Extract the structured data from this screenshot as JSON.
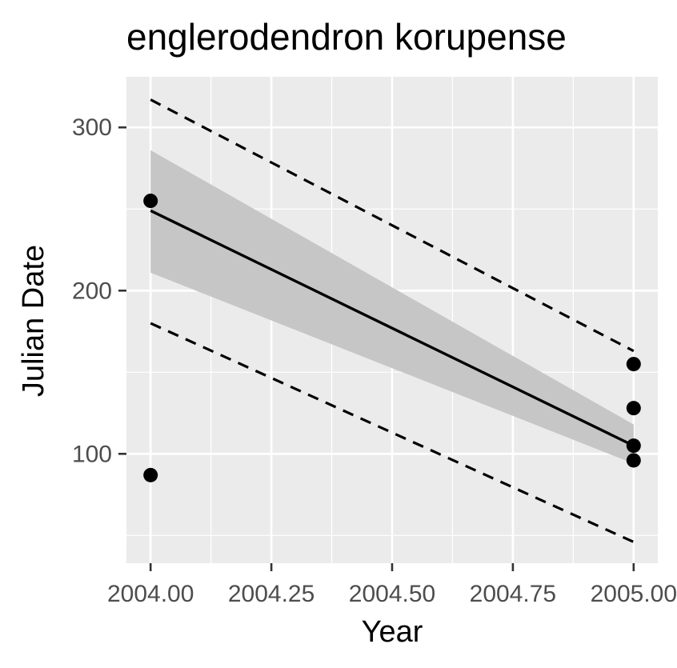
{
  "chart_data": {
    "type": "scatter",
    "title": "englerodendron korupense",
    "xlabel": "Year",
    "ylabel": "Julian Date",
    "xlim": [
      2003.95,
      2005.05
    ],
    "ylim": [
      33,
      331
    ],
    "x_ticks": [
      2004.0,
      2004.25,
      2004.5,
      2004.75,
      2005.0
    ],
    "x_tick_labels": [
      "2004.00",
      "2004.25",
      "2004.50",
      "2004.75",
      "2005.00"
    ],
    "y_ticks": [
      100,
      200,
      300
    ],
    "y_tick_labels": [
      "100",
      "200",
      "300"
    ],
    "grid": true,
    "points": [
      {
        "x": 2004.0,
        "y": 255
      },
      {
        "x": 2004.0,
        "y": 87
      },
      {
        "x": 2005.0,
        "y": 155
      },
      {
        "x": 2005.0,
        "y": 128
      },
      {
        "x": 2005.0,
        "y": 105
      },
      {
        "x": 2005.0,
        "y": 96
      }
    ],
    "fit_line": {
      "x": [
        2004.0,
        2005.0
      ],
      "y": [
        249,
        105
      ]
    },
    "confidence_band": {
      "x": [
        2004.0,
        2005.0
      ],
      "upper": [
        286,
        118
      ],
      "lower": [
        211,
        94
      ]
    },
    "prediction_interval": {
      "x": [
        2004.0,
        2005.0
      ],
      "upper": [
        317,
        163
      ],
      "lower": [
        180,
        46
      ]
    },
    "colors": {
      "panel_background": "#ebebeb",
      "grid": "#ffffff",
      "band": "#c6c6c6",
      "points": "#000000",
      "fit_line": "#000000",
      "interval_lines": "#000000",
      "tick_labels": "#4d4d4d"
    }
  }
}
